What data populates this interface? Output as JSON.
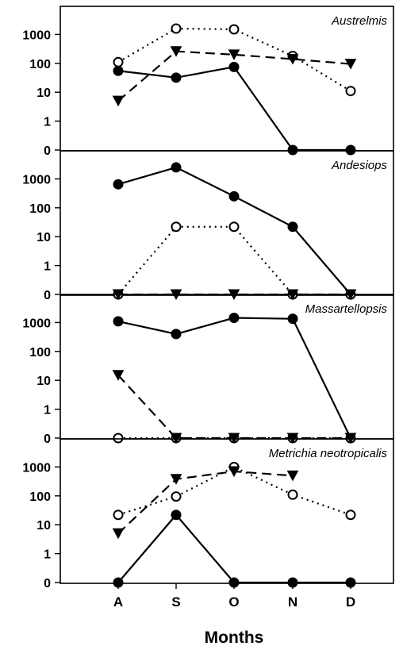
{
  "chart_data": {
    "type": "line",
    "xlabel": "Months",
    "categories": [
      "A",
      "S",
      "O",
      "N",
      "D"
    ],
    "yscale": "log (0 plotted at base)",
    "yticks": [
      "0",
      "1",
      "10",
      "100",
      "1000"
    ],
    "grid": false,
    "legend": "none",
    "panels": [
      {
        "title": "Austrelmis",
        "series": [
          {
            "style": "solid-filled-circle",
            "values": [
              55,
              32,
              75,
              0,
              0
            ]
          },
          {
            "style": "dotted-open-circle",
            "values": [
              110,
              1600,
              1500,
              180,
              11
            ]
          },
          {
            "style": "dashed-filled-triangle",
            "values": [
              5,
              260,
              200,
              140,
              95
            ]
          }
        ]
      },
      {
        "title": "Andesiops",
        "series": [
          {
            "style": "solid-filled-circle",
            "values": [
              650,
              2500,
              250,
              22,
              0
            ]
          },
          {
            "style": "dotted-open-circle",
            "values": [
              0,
              22,
              22,
              0,
              0
            ]
          },
          {
            "style": "dashed-filled-triangle",
            "values": [
              0,
              0,
              0,
              0,
              0
            ]
          }
        ]
      },
      {
        "title": "Massartellopsis",
        "series": [
          {
            "style": "solid-filled-circle",
            "values": [
              1100,
              400,
              1450,
              1350,
              0
            ]
          },
          {
            "style": "dotted-open-circle",
            "values": [
              0,
              0,
              0,
              0,
              0
            ]
          },
          {
            "style": "dashed-filled-triangle",
            "values": [
              15,
              0,
              0,
              0,
              0
            ]
          }
        ]
      },
      {
        "title": "Metrichia neotropicalis",
        "series": [
          {
            "style": "solid-filled-circle",
            "values": [
              0,
              22,
              0,
              0,
              0
            ]
          },
          {
            "style": "dotted-open-circle",
            "values": [
              22,
              95,
              1000,
              110,
              22
            ]
          },
          {
            "style": "dashed-filled-triangle",
            "values": [
              5,
              380,
              700,
              500,
              null
            ]
          }
        ]
      }
    ]
  }
}
